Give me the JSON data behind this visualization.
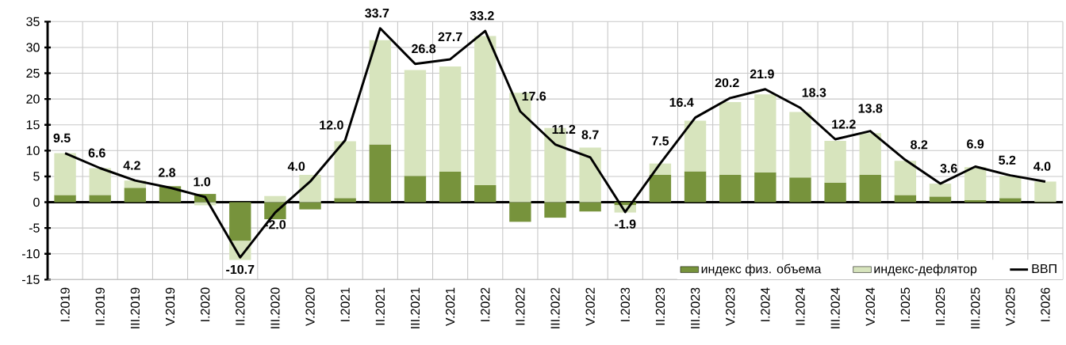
{
  "chart_data": {
    "type": "bar",
    "stacked": true,
    "categories": [
      "I.2019",
      "II.2019",
      "III.2019",
      "V.2019",
      "I.2020",
      "II.2020",
      "III.2020",
      "V.2020",
      "I.2021",
      "II.2021",
      "III.2021",
      "V.2021",
      "I.2022",
      "II.2022",
      "III.2022",
      "V.2022",
      "I.2023",
      "II.2023",
      "III.2023",
      "V.2023",
      "I.2024",
      "II.2024",
      "III.2024",
      "V.2024",
      "I.2025",
      "II.2025",
      "III.2025",
      "V.2025",
      "I.2026"
    ],
    "series": [
      {
        "name": "индекс физ. объема",
        "color": "#77933c",
        "values": [
          1.4,
          1.4,
          2.8,
          3.1,
          1.6,
          -7.5,
          -3.3,
          -1.4,
          0.8,
          11.2,
          5.1,
          5.9,
          3.3,
          -3.8,
          -3.0,
          -1.8,
          -0.6,
          5.3,
          6.0,
          5.3,
          5.8,
          4.8,
          3.8,
          5.3,
          1.4,
          1.1,
          0.4,
          0.8,
          0.1
        ]
      },
      {
        "name": "индекс-дефлятор",
        "color": "#d7e4bd",
        "values": [
          8.1,
          5.2,
          1.4,
          null,
          -0.6,
          -3.7,
          1.2,
          5.3,
          11.0,
          20.2,
          20.5,
          20.4,
          28.9,
          21.2,
          14.4,
          10.6,
          -1.4,
          2.2,
          9.8,
          14.1,
          15.1,
          12.7,
          8.1,
          8.1,
          6.6,
          2.5,
          6.4,
          4.3,
          3.9
        ]
      },
      {
        "name": "ВВП",
        "type": "line",
        "color": "#000000",
        "values": [
          9.5,
          6.6,
          4.2,
          2.8,
          1.0,
          -10.7,
          -2.0,
          4.0,
          12.0,
          33.7,
          26.8,
          27.7,
          33.2,
          17.6,
          11.2,
          8.7,
          -1.9,
          7.5,
          16.4,
          20.2,
          21.9,
          18.3,
          12.2,
          13.8,
          8.2,
          3.6,
          6.9,
          5.2,
          4.0
        ],
        "value_labels": [
          "9.5",
          "6.6",
          "4.2",
          "2.8",
          "1.0",
          "-10.7",
          "-2.0",
          "4.0",
          "12.0",
          "33.7",
          "26.8",
          "27.7",
          "33.2",
          "17.6",
          "11.2",
          "8.7",
          "-1.9",
          "7.5",
          "16.4",
          "20.2",
          "21.9",
          "18.3",
          "12.2",
          "13.8",
          "8.2",
          "3.6",
          "6.9",
          "5.2",
          "4.0"
        ]
      }
    ],
    "ylim": [
      -15,
      35
    ],
    "yticks": [
      -15,
      -10,
      -5,
      0,
      5,
      10,
      15,
      20,
      25,
      30,
      35
    ],
    "grid": true,
    "legend": "bottom right"
  }
}
